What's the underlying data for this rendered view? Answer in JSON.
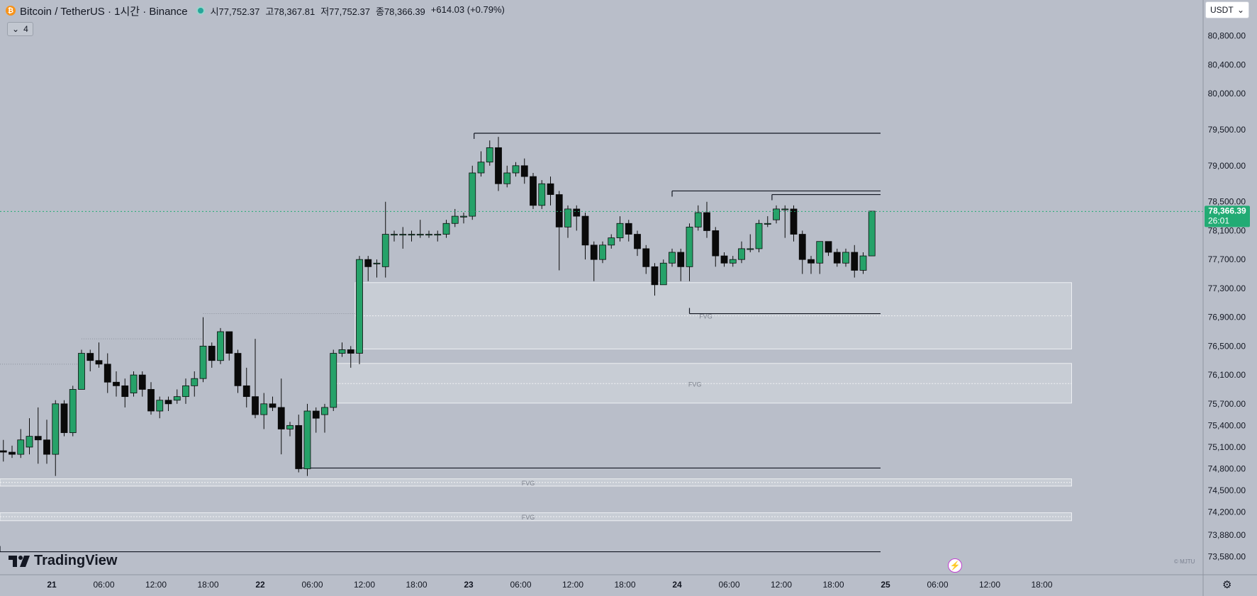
{
  "header": {
    "symbol": "Bitcoin / TetherUS · 1시간 · Binance",
    "open": "시77,752.37",
    "high": "고78,367.81",
    "low": "저77,752.37",
    "close": "종78,366.39",
    "change": "+614.03 (+0.79%)",
    "indicators_count": "4"
  },
  "currency": {
    "label": "USDT"
  },
  "price_label": {
    "price": "78,366.39",
    "countdown": "26:01"
  },
  "branding": {
    "logo": "TradingView",
    "watermark": "© MJTU"
  },
  "colors": {
    "up": "#26a269",
    "down": "#0a0a0a",
    "background": "#b9bec9",
    "price_tag": "#22ab74"
  },
  "chart_data": {
    "type": "candlestick",
    "timeframe": "1h",
    "ylim": [
      73400,
      81100
    ],
    "y_ticks": [
      "80,800.00",
      "80,400.00",
      "80,000.00",
      "79,500.00",
      "79,000.00",
      "78,500.00",
      "78,100.00",
      "77,700.00",
      "77,300.00",
      "76,900.00",
      "76,500.00",
      "76,100.00",
      "75,700.00",
      "75,400.00",
      "75,100.00",
      "74,800.00",
      "74,500.00",
      "74,200.00",
      "73,880.00",
      "73,580.00"
    ],
    "y_tick_values": [
      80800,
      80400,
      80000,
      79500,
      79000,
      78500,
      78100,
      77700,
      77300,
      76900,
      76500,
      76100,
      75700,
      75400,
      75100,
      74800,
      74500,
      74200,
      73880,
      73580
    ],
    "x_ticks": [
      {
        "label": "21",
        "hour": 0
      },
      {
        "label": "06:00",
        "hour": 6
      },
      {
        "label": "12:00",
        "hour": 12
      },
      {
        "label": "18:00",
        "hour": 18
      },
      {
        "label": "22",
        "hour": 24
      },
      {
        "label": "06:00",
        "hour": 30
      },
      {
        "label": "12:00",
        "hour": 36
      },
      {
        "label": "18:00",
        "hour": 42
      },
      {
        "label": "23",
        "hour": 48
      },
      {
        "label": "06:00",
        "hour": 54
      },
      {
        "label": "12:00",
        "hour": 60
      },
      {
        "label": "18:00",
        "hour": 66
      },
      {
        "label": "24",
        "hour": 72
      },
      {
        "label": "06:00",
        "hour": 78
      },
      {
        "label": "12:00",
        "hour": 84
      },
      {
        "label": "18:00",
        "hour": 90
      },
      {
        "label": "25",
        "hour": 96
      },
      {
        "label": "06:00",
        "hour": 102
      },
      {
        "label": "12:00",
        "hour": 108
      },
      {
        "label": "18:00",
        "hour": 114
      }
    ],
    "last_price": 78366.39,
    "candles": [
      {
        "h": -5,
        "o": 75050,
        "c": 75030,
        "hi": 75200,
        "lo": 74900
      },
      {
        "h": -4,
        "o": 75030,
        "c": 75000,
        "hi": 75120,
        "lo": 74950
      },
      {
        "h": -3,
        "o": 75000,
        "c": 75200,
        "hi": 75350,
        "lo": 74950
      },
      {
        "h": -2,
        "o": 75100,
        "c": 75250,
        "hi": 75500,
        "lo": 75000
      },
      {
        "h": -1,
        "o": 75250,
        "c": 75200,
        "hi": 75650,
        "lo": 74870
      },
      {
        "h": 0,
        "o": 75200,
        "c": 75000,
        "hi": 75480,
        "lo": 74870
      },
      {
        "h": 1,
        "o": 75000,
        "c": 75700,
        "hi": 75750,
        "lo": 74700
      },
      {
        "h": 2,
        "o": 75700,
        "c": 75300,
        "hi": 75750,
        "lo": 75250
      },
      {
        "h": 3,
        "o": 75300,
        "c": 75900,
        "hi": 75950,
        "lo": 75250
      },
      {
        "h": 4,
        "o": 75900,
        "c": 76400,
        "hi": 76450,
        "lo": 75900
      },
      {
        "h": 5,
        "o": 76400,
        "c": 76300,
        "hi": 76450,
        "lo": 76150
      },
      {
        "h": 6,
        "o": 76300,
        "c": 76250,
        "hi": 76550,
        "lo": 76200
      },
      {
        "h": 7,
        "o": 76250,
        "c": 76000,
        "hi": 76400,
        "lo": 75850
      },
      {
        "h": 8,
        "o": 76000,
        "c": 75950,
        "hi": 76150,
        "lo": 75800
      },
      {
        "h": 9,
        "o": 75950,
        "c": 75800,
        "hi": 76050,
        "lo": 75650
      },
      {
        "h": 10,
        "o": 75850,
        "c": 76100,
        "hi": 76150,
        "lo": 75800
      },
      {
        "h": 11,
        "o": 76100,
        "c": 75900,
        "hi": 76150,
        "lo": 75800
      },
      {
        "h": 12,
        "o": 75900,
        "c": 75600,
        "hi": 76000,
        "lo": 75550
      },
      {
        "h": 13,
        "o": 75600,
        "c": 75750,
        "hi": 75800,
        "lo": 75500
      },
      {
        "h": 14,
        "o": 75750,
        "c": 75700,
        "hi": 75800,
        "lo": 75600
      },
      {
        "h": 15,
        "o": 75750,
        "c": 75800,
        "hi": 75900,
        "lo": 75700
      },
      {
        "h": 16,
        "o": 75800,
        "c": 75950,
        "hi": 76050,
        "lo": 75700
      },
      {
        "h": 17,
        "o": 75950,
        "c": 76050,
        "hi": 76150,
        "lo": 75800
      },
      {
        "h": 18,
        "o": 76050,
        "c": 76500,
        "hi": 76900,
        "lo": 76000
      },
      {
        "h": 19,
        "o": 76500,
        "c": 76300,
        "hi": 76550,
        "lo": 76200
      },
      {
        "h": 20,
        "o": 76300,
        "c": 76700,
        "hi": 76750,
        "lo": 76250
      },
      {
        "h": 21,
        "o": 76700,
        "c": 76400,
        "hi": 76700,
        "lo": 76300
      },
      {
        "h": 22,
        "o": 76400,
        "c": 75950,
        "hi": 76450,
        "lo": 75850
      },
      {
        "h": 23,
        "o": 75950,
        "c": 75800,
        "hi": 76200,
        "lo": 75650
      },
      {
        "h": 24,
        "o": 75800,
        "c": 75550,
        "hi": 76600,
        "lo": 75500
      },
      {
        "h": 25,
        "o": 75550,
        "c": 75700,
        "hi": 75850,
        "lo": 75350
      },
      {
        "h": 26,
        "o": 75700,
        "c": 75650,
        "hi": 75800,
        "lo": 75600
      },
      {
        "h": 27,
        "o": 75650,
        "c": 75350,
        "hi": 76050,
        "lo": 75000
      },
      {
        "h": 28,
        "o": 75350,
        "c": 75400,
        "hi": 75450,
        "lo": 75250
      },
      {
        "h": 29,
        "o": 75400,
        "c": 74800,
        "hi": 75550,
        "lo": 74750
      },
      {
        "h": 30,
        "o": 74800,
        "c": 75600,
        "hi": 75700,
        "lo": 74700
      },
      {
        "h": 31,
        "o": 75600,
        "c": 75500,
        "hi": 75650,
        "lo": 75300
      },
      {
        "h": 32,
        "o": 75550,
        "c": 75650,
        "hi": 75700,
        "lo": 75300
      },
      {
        "h": 33,
        "o": 75650,
        "c": 76400,
        "hi": 76450,
        "lo": 75600
      },
      {
        "h": 34,
        "o": 76400,
        "c": 76450,
        "hi": 76550,
        "lo": 76350
      },
      {
        "h": 35,
        "o": 76450,
        "c": 76400,
        "hi": 76500,
        "lo": 76200
      },
      {
        "h": 36,
        "o": 76400,
        "c": 77700,
        "hi": 77750,
        "lo": 76250
      },
      {
        "h": 37,
        "o": 77700,
        "c": 77600,
        "hi": 77750,
        "lo": 77400
      },
      {
        "h": 38,
        "o": 77650,
        "c": 77650,
        "hi": 77700,
        "lo": 77450
      },
      {
        "h": 39,
        "o": 77600,
        "c": 78050,
        "hi": 78500,
        "lo": 77450
      },
      {
        "h": 40,
        "o": 78050,
        "c": 78050,
        "hi": 78100,
        "lo": 77950
      },
      {
        "h": 41,
        "o": 78050,
        "c": 78050,
        "hi": 78150,
        "lo": 77850
      },
      {
        "h": 42,
        "o": 78050,
        "c": 78050,
        "hi": 78100,
        "lo": 77950
      },
      {
        "h": 43,
        "o": 78050,
        "c": 78050,
        "hi": 78250,
        "lo": 78000
      },
      {
        "h": 44,
        "o": 78050,
        "c": 78050,
        "hi": 78100,
        "lo": 78000
      },
      {
        "h": 45,
        "o": 78050,
        "c": 78050,
        "hi": 78100,
        "lo": 77950
      },
      {
        "h": 46,
        "o": 78050,
        "c": 78200,
        "hi": 78250,
        "lo": 78000
      },
      {
        "h": 47,
        "o": 78200,
        "c": 78300,
        "hi": 78400,
        "lo": 78150
      },
      {
        "h": 48,
        "o": 78300,
        "c": 78300,
        "hi": 78350,
        "lo": 78200
      },
      {
        "h": 49,
        "o": 78300,
        "c": 78900,
        "hi": 79000,
        "lo": 78250
      },
      {
        "h": 50,
        "o": 78900,
        "c": 79050,
        "hi": 79200,
        "lo": 78850
      },
      {
        "h": 51,
        "o": 79050,
        "c": 79250,
        "hi": 79350,
        "lo": 79000
      },
      {
        "h": 52,
        "o": 79250,
        "c": 78750,
        "hi": 79400,
        "lo": 78650
      },
      {
        "h": 53,
        "o": 78750,
        "c": 78900,
        "hi": 79000,
        "lo": 78700
      },
      {
        "h": 54,
        "o": 78900,
        "c": 79000,
        "hi": 79050,
        "lo": 78850
      },
      {
        "h": 55,
        "o": 79000,
        "c": 78850,
        "hi": 79100,
        "lo": 78750
      },
      {
        "h": 56,
        "o": 78850,
        "c": 78450,
        "hi": 78900,
        "lo": 78400
      },
      {
        "h": 57,
        "o": 78450,
        "c": 78750,
        "hi": 78800,
        "lo": 78400
      },
      {
        "h": 58,
        "o": 78750,
        "c": 78600,
        "hi": 78850,
        "lo": 78450
      },
      {
        "h": 59,
        "o": 78600,
        "c": 78150,
        "hi": 78650,
        "lo": 77550
      },
      {
        "h": 60,
        "o": 78150,
        "c": 78400,
        "hi": 78450,
        "lo": 78000
      },
      {
        "h": 61,
        "o": 78400,
        "c": 78300,
        "hi": 78450,
        "lo": 78100
      },
      {
        "h": 62,
        "o": 78300,
        "c": 77900,
        "hi": 78350,
        "lo": 77700
      },
      {
        "h": 63,
        "o": 77900,
        "c": 77700,
        "hi": 77950,
        "lo": 77400
      },
      {
        "h": 64,
        "o": 77700,
        "c": 77900,
        "hi": 77950,
        "lo": 77650
      },
      {
        "h": 65,
        "o": 77900,
        "c": 78000,
        "hi": 78050,
        "lo": 77850
      },
      {
        "h": 66,
        "o": 78000,
        "c": 78200,
        "hi": 78300,
        "lo": 77950
      },
      {
        "h": 67,
        "o": 78200,
        "c": 78050,
        "hi": 78250,
        "lo": 77950
      },
      {
        "h": 68,
        "o": 78050,
        "c": 77850,
        "hi": 78100,
        "lo": 77750
      },
      {
        "h": 69,
        "o": 77850,
        "c": 77600,
        "hi": 77900,
        "lo": 77500
      },
      {
        "h": 70,
        "o": 77600,
        "c": 77350,
        "hi": 77650,
        "lo": 77200
      },
      {
        "h": 71,
        "o": 77350,
        "c": 77650,
        "hi": 77700,
        "lo": 77350
      },
      {
        "h": 72,
        "o": 77650,
        "c": 77800,
        "hi": 77850,
        "lo": 77600
      },
      {
        "h": 73,
        "o": 77800,
        "c": 77600,
        "hi": 77850,
        "lo": 77400
      },
      {
        "h": 74,
        "o": 77600,
        "c": 78150,
        "hi": 78200,
        "lo": 77400
      },
      {
        "h": 75,
        "o": 78150,
        "c": 78350,
        "hi": 78450,
        "lo": 78100
      },
      {
        "h": 76,
        "o": 78350,
        "c": 78100,
        "hi": 78500,
        "lo": 78000
      },
      {
        "h": 77,
        "o": 78100,
        "c": 77750,
        "hi": 78150,
        "lo": 77600
      },
      {
        "h": 78,
        "o": 77750,
        "c": 77650,
        "hi": 77800,
        "lo": 77600
      },
      {
        "h": 79,
        "o": 77650,
        "c": 77700,
        "hi": 77750,
        "lo": 77600
      },
      {
        "h": 80,
        "o": 77700,
        "c": 77850,
        "hi": 77950,
        "lo": 77650
      },
      {
        "h": 81,
        "o": 77850,
        "c": 77850,
        "hi": 78050,
        "lo": 77800
      },
      {
        "h": 82,
        "o": 77850,
        "c": 78200,
        "hi": 78250,
        "lo": 77800
      },
      {
        "h": 83,
        "o": 78200,
        "c": 78200,
        "hi": 78300,
        "lo": 78150
      },
      {
        "h": 84,
        "o": 78250,
        "c": 78400,
        "hi": 78450,
        "lo": 78200
      },
      {
        "h": 85,
        "o": 78400,
        "c": 78400,
        "hi": 78450,
        "lo": 78000
      },
      {
        "h": 86,
        "o": 78400,
        "c": 78050,
        "hi": 78450,
        "lo": 77950
      },
      {
        "h": 87,
        "o": 78050,
        "c": 77700,
        "hi": 78100,
        "lo": 77500
      },
      {
        "h": 88,
        "o": 77700,
        "c": 77650,
        "hi": 77750,
        "lo": 77500
      },
      {
        "h": 89,
        "o": 77650,
        "c": 77950,
        "hi": 77950,
        "lo": 77500
      },
      {
        "h": 90,
        "o": 77950,
        "c": 77800,
        "hi": 77950,
        "lo": 77750
      },
      {
        "h": 91,
        "o": 77800,
        "c": 77650,
        "hi": 77850,
        "lo": 77600
      },
      {
        "h": 92,
        "o": 77650,
        "c": 77800,
        "hi": 77850,
        "lo": 77600
      },
      {
        "h": 93,
        "o": 77800,
        "c": 77550,
        "hi": 77900,
        "lo": 77450
      },
      {
        "h": 94,
        "o": 77550,
        "c": 77750,
        "hi": 77800,
        "lo": 77500
      },
      {
        "h": 95,
        "o": 77750,
        "c": 78370,
        "hi": 78370,
        "lo": 77750
      }
    ],
    "zones": [
      {
        "label": "FVG",
        "from_hour": 35.5,
        "to_hour": 118,
        "low": 76460,
        "high": 77380,
        "mid": 76920
      },
      {
        "label": "FVG",
        "from_hour": 33,
        "to_hour": 118,
        "low": 75710,
        "high": 76260,
        "mid": 75980
      },
      {
        "label": "FVG",
        "from_hour": -5.5,
        "to_hour": 118,
        "low": 74560,
        "high": 74660,
        "mid": 74610
      },
      {
        "label": "FVG",
        "from_hour": -5.5,
        "to_hour": 118,
        "low": 74080,
        "high": 74190,
        "mid": 74135
      }
    ],
    "level_lines": [
      {
        "from_hour": 49.2,
        "to_hour": 96,
        "price": 79450
      },
      {
        "from_hour": 72,
        "to_hour": 96,
        "price": 78650
      },
      {
        "from_hour": 83.5,
        "to_hour": 96,
        "price": 78600
      },
      {
        "from_hour": 74,
        "to_hour": 96,
        "price": 76950
      },
      {
        "from_hour": 29,
        "to_hour": 96,
        "price": 74810
      },
      {
        "from_hour": -5.5,
        "to_hour": 96,
        "price": 73650
      }
    ],
    "dotted_guides": [
      {
        "from_hour": 18,
        "to_hour": 35.5,
        "price": 76950
      },
      {
        "from_hour": 4,
        "to_hour": 18,
        "price": 76600
      },
      {
        "from_hour": -5.5,
        "to_hour": 4,
        "price": 76250
      }
    ]
  }
}
